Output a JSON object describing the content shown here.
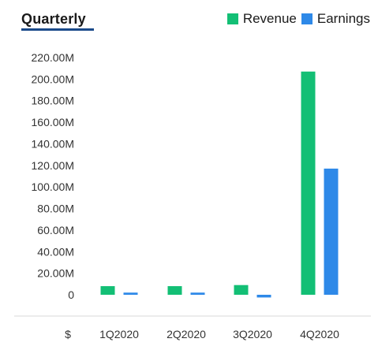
{
  "header": {
    "title": "Quarterly"
  },
  "legend": [
    {
      "label": "Revenue",
      "color": "#13bf75"
    },
    {
      "label": "Earnings",
      "color": "#2e89e8"
    }
  ],
  "currency_label": "$",
  "chart_data": {
    "type": "bar",
    "categories": [
      "1Q2020",
      "2Q2020",
      "3Q2020",
      "4Q2020"
    ],
    "series": [
      {
        "name": "Revenue",
        "color": "#13bf75",
        "values": [
          8000000,
          8000000,
          9000000,
          207000000
        ]
      },
      {
        "name": "Earnings",
        "color": "#2e89e8",
        "values": [
          2000000,
          2000000,
          -2500000,
          117000000
        ]
      }
    ],
    "yticks": [
      0,
      20000000,
      40000000,
      60000000,
      80000000,
      100000000,
      120000000,
      140000000,
      160000000,
      180000000,
      200000000,
      220000000
    ],
    "ytick_labels": [
      "0",
      "20.00M",
      "40.00M",
      "60.00M",
      "80.00M",
      "100.00M",
      "120.00M",
      "140.00M",
      "160.00M",
      "180.00M",
      "200.00M",
      "220.00M"
    ],
    "ylim": [
      -5000000,
      220000000
    ],
    "legend_position": "top-right",
    "grid": false
  }
}
